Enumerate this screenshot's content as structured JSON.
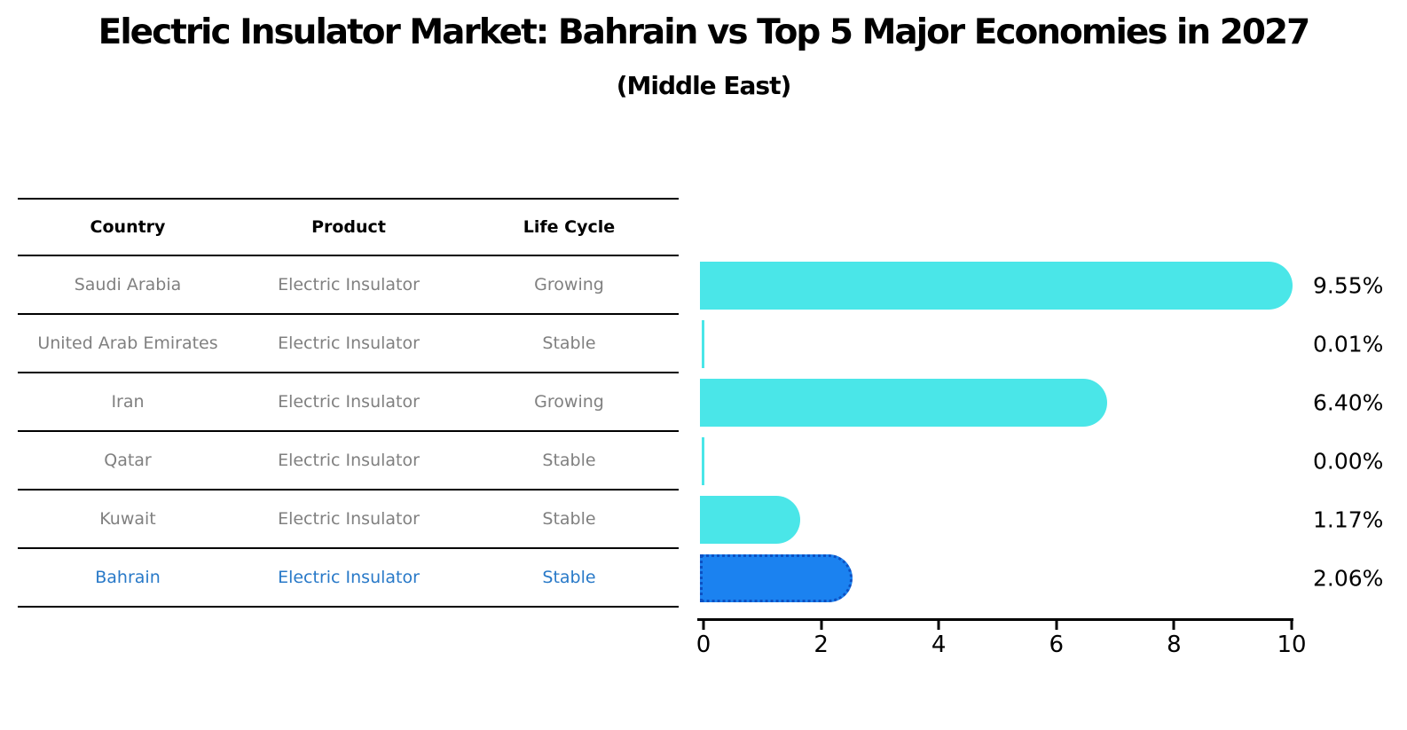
{
  "title": "Electric Insulator Market: Bahrain vs Top 5 Major Economies in 2027",
  "subtitle": "(Middle East)",
  "table": {
    "headers": [
      "Country",
      "Product",
      "Life Cycle"
    ],
    "rows": [
      {
        "country": "Saudi Arabia",
        "product": "Electric Insulator",
        "life_cycle": "Growing",
        "highlight": false
      },
      {
        "country": "United Arab Emirates",
        "product": "Electric Insulator",
        "life_cycle": "Stable",
        "highlight": false
      },
      {
        "country": "Iran",
        "product": "Electric Insulator",
        "life_cycle": "Growing",
        "highlight": false
      },
      {
        "country": "Qatar",
        "product": "Electric Insulator",
        "life_cycle": "Stable",
        "highlight": false
      },
      {
        "country": "Kuwait",
        "product": "Electric Insulator",
        "life_cycle": "Stable",
        "highlight": false
      },
      {
        "country": "Bahrain",
        "product": "Electric Insulator",
        "life_cycle": "Stable",
        "highlight": true
      }
    ]
  },
  "chart_data": {
    "type": "bar",
    "orientation": "horizontal",
    "title": "Electric Insulator Market: Bahrain vs Top 5 Major Economies in 2027 (Middle East)",
    "categories": [
      "Saudi Arabia",
      "United Arab Emirates",
      "Iran",
      "Qatar",
      "Kuwait",
      "Bahrain"
    ],
    "values": [
      9.55,
      0.01,
      6.4,
      0.0,
      1.17,
      2.06
    ],
    "value_labels": [
      "9.55%",
      "0.01%",
      "6.40%",
      "0.00%",
      "1.17%",
      "2.06%"
    ],
    "xlabel": "",
    "ylabel": "",
    "xlim": [
      0,
      10
    ],
    "x_ticks": [
      0,
      2,
      4,
      6,
      8,
      10
    ],
    "x_tick_labels": [
      "0",
      "2",
      "4",
      "6",
      "8",
      "10"
    ],
    "grid": false,
    "legend": "none",
    "bar_color": "#4ae6e8",
    "highlight_color": "#1b82f0",
    "highlight_border_color": "#0d50c2",
    "highlight_index": 5,
    "label_color": "#000000",
    "muted_text_color": "#808080",
    "highlight_text_color": "#2879c8"
  }
}
